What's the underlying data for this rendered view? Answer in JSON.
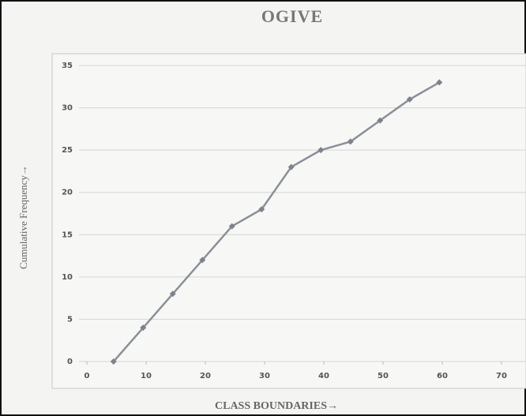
{
  "chart_data": {
    "type": "line",
    "title": "OGIVE",
    "x_label": "CLASS BOUNDARIES→",
    "y_label": "Cumulative Frequency→",
    "x": [
      4.5,
      9.5,
      14.5,
      19.5,
      24.5,
      29.5,
      34.5,
      39.5,
      44.5,
      49.5,
      54.5,
      59.5
    ],
    "values": [
      0,
      4,
      8,
      12,
      16,
      18,
      23,
      25,
      26,
      28.5,
      31,
      33
    ],
    "color": "#8a9098",
    "xlim": [
      0,
      70
    ],
    "xticks": [
      0,
      10,
      20,
      30,
      40,
      50,
      60,
      70
    ],
    "ylim": [
      0,
      35
    ],
    "yticks": [
      0,
      5,
      10,
      15,
      20,
      25,
      30,
      35
    ],
    "grid": true
  }
}
